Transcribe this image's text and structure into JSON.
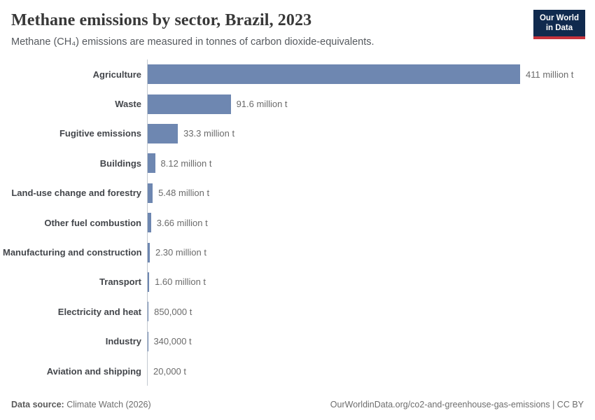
{
  "header": {
    "title": "Methane emissions by sector, Brazil, 2023",
    "subtitle": "Methane (CH₄) emissions are measured in tonnes of carbon dioxide-equivalents.",
    "logo": {
      "line1": "Our World",
      "line2": "in Data"
    }
  },
  "chart_data": {
    "type": "bar",
    "orientation": "horizontal",
    "title": "Methane emissions by sector, Brazil, 2023",
    "unit": "tonnes of carbon dioxide-equivalents",
    "xlim_million_t": [
      0,
      411
    ],
    "grid": false,
    "legend": false,
    "bar_color": "#6e87b1",
    "axis_color": "#c3c9d1",
    "categories": [
      "Agriculture",
      "Waste",
      "Fugitive emissions",
      "Buildings",
      "Land-use change and forestry",
      "Other fuel combustion",
      "Manufacturing and construction",
      "Transport",
      "Electricity and heat",
      "Industry",
      "Aviation and shipping"
    ],
    "values_million_t": [
      411,
      91.6,
      33.3,
      8.12,
      5.48,
      3.66,
      2.3,
      1.6,
      0.85,
      0.34,
      0.02
    ],
    "value_labels": [
      "411 million t",
      "91.6 million t",
      "33.3 million t",
      "8.12 million t",
      "5.48 million t",
      "3.66 million t",
      "2.30 million t",
      "1.60 million t",
      "850,000 t",
      "340,000 t",
      "20,000 t"
    ]
  },
  "footer": {
    "source_label": "Data source:",
    "source_value": "Climate Watch (2026)",
    "link": "OurWorldinData.org/co2-and-greenhouse-gas-emissions | CC BY"
  }
}
